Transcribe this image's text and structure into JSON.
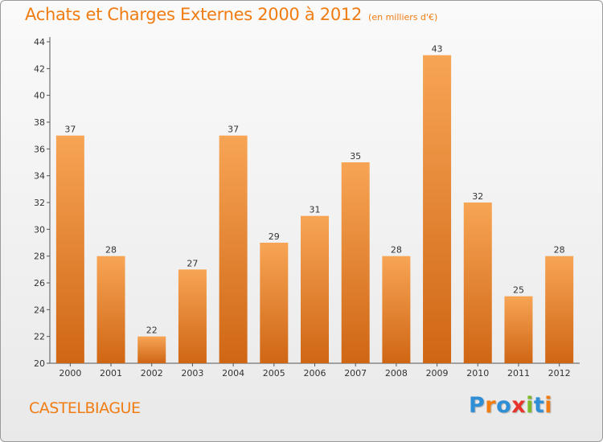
{
  "header": {
    "title": "Achats et Charges Externes 2000 à 2012",
    "unit": "(en milliers d'€)"
  },
  "commune": "CASTELBIAGUE",
  "logo": {
    "text": "Proxiti",
    "colors": [
      "#2e8fd6",
      "#f07c12",
      "#2e8fd6",
      "#e8332a",
      "#7cba2b",
      "#2e8fd6",
      "#f07c12"
    ]
  },
  "colors": {
    "accent": "#f07c12",
    "bar_top": "#f7a555",
    "bar_bottom": "#cf6614"
  },
  "chart_data": {
    "type": "bar",
    "title": "Achats et Charges Externes 2000 à 2012",
    "unit": "(en milliers d'€)",
    "categories": [
      "2000",
      "2001",
      "2002",
      "2003",
      "2004",
      "2005",
      "2006",
      "2007",
      "2008",
      "2009",
      "2010",
      "2011",
      "2012"
    ],
    "values": [
      37,
      28,
      22,
      27,
      37,
      29,
      31,
      35,
      28,
      43,
      32,
      25,
      28
    ],
    "ylim": [
      20,
      44
    ],
    "ytick_step": 2,
    "grid": false,
    "data_labels": true
  }
}
